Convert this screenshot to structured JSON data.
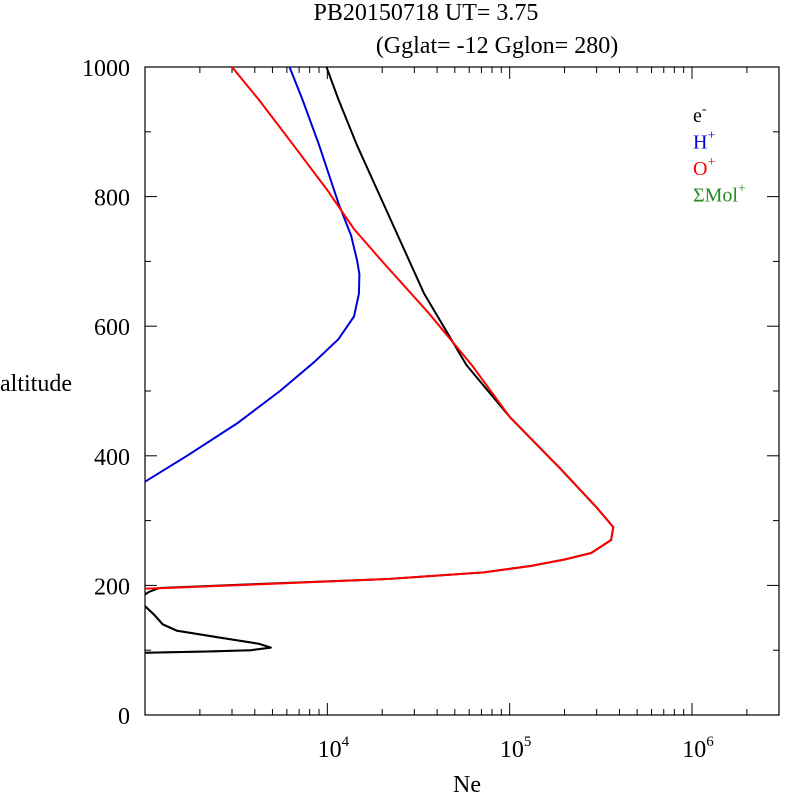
{
  "chart_data": {
    "type": "line",
    "title": "PB20150718   UT=  3.75",
    "subtitle": "(Gglat= -12   Gglon=  280)",
    "xlabel": "Ne",
    "ylabel": "altitude",
    "x_scale": "log",
    "xlim": [
      1000,
      3000000
    ],
    "ylim": [
      0,
      1000
    ],
    "grid": false,
    "legend_position": "top-right",
    "y_ticks": [
      0,
      200,
      400,
      600,
      800,
      1000
    ],
    "y_tick_labels": [
      "0",
      "200",
      "400",
      "600",
      "800",
      "1000"
    ],
    "x_ticks": [
      {
        "value": 10000,
        "base": "10",
        "exp": "4"
      },
      {
        "value": 100000,
        "base": "10",
        "exp": "5"
      },
      {
        "value": 1000000,
        "base": "10",
        "exp": "6"
      }
    ],
    "series": [
      {
        "name": "e",
        "sup": "-",
        "color": "#000000",
        "points": [
          [
            9900,
            1000
          ],
          [
            11500,
            950
          ],
          [
            14500,
            880
          ],
          [
            21000,
            780
          ],
          [
            34000,
            650
          ],
          [
            58000,
            540
          ],
          [
            100000,
            460
          ],
          [
            190000,
            380
          ],
          [
            300000,
            320
          ],
          [
            370000,
            290
          ],
          [
            360000,
            270
          ],
          [
            280000,
            250
          ],
          [
            200000,
            240
          ],
          [
            130000,
            230
          ],
          [
            72000,
            220
          ],
          [
            22000,
            210
          ],
          [
            4000,
            202
          ],
          [
            1200,
            196
          ],
          [
            1050,
            190
          ],
          [
            1000,
            186
          ]
        ]
      },
      {
        "name": "H",
        "sup": "+",
        "color": "#0000dd",
        "points": [
          [
            6200,
            1000
          ],
          [
            7300,
            950
          ],
          [
            9000,
            880
          ],
          [
            11500,
            790
          ],
          [
            13500,
            740
          ],
          [
            14600,
            700
          ],
          [
            15000,
            680
          ],
          [
            14900,
            650
          ],
          [
            14000,
            615
          ],
          [
            11500,
            580
          ],
          [
            8500,
            545
          ],
          [
            5500,
            500
          ],
          [
            3200,
            450
          ],
          [
            1700,
            400
          ],
          [
            1000,
            360
          ]
        ]
      },
      {
        "name": "O",
        "sup": "+",
        "color": "#ff0000",
        "points": [
          [
            3000,
            1000
          ],
          [
            4200,
            950
          ],
          [
            6500,
            880
          ],
          [
            10000,
            810
          ],
          [
            14000,
            750
          ],
          [
            20000,
            700
          ],
          [
            36000,
            620
          ],
          [
            62000,
            540
          ],
          [
            100000,
            460
          ],
          [
            190000,
            380
          ],
          [
            300000,
            320
          ],
          [
            370000,
            290
          ],
          [
            360000,
            270
          ],
          [
            280000,
            250
          ],
          [
            200000,
            240
          ],
          [
            130000,
            230
          ],
          [
            72000,
            220
          ],
          [
            22000,
            210
          ],
          [
            4500,
            202
          ],
          [
            1300,
            196
          ],
          [
            1000,
            195
          ]
        ]
      },
      {
        "name": "ΣMol",
        "sup": "+",
        "color": "#228b22",
        "points": [
          [
            1000,
            168
          ],
          [
            1120,
            155
          ],
          [
            1250,
            140
          ],
          [
            1500,
            130
          ],
          [
            2500,
            120
          ],
          [
            4200,
            110
          ],
          [
            4900,
            104
          ],
          [
            3800,
            100
          ],
          [
            2200,
            98
          ],
          [
            1000,
            96
          ]
        ]
      },
      {
        "name": "",
        "sup": "",
        "color": "#000000",
        "points": [
          [
            1000,
            168
          ],
          [
            1120,
            155
          ],
          [
            1250,
            140
          ],
          [
            1500,
            130
          ],
          [
            2500,
            120
          ],
          [
            4200,
            110
          ],
          [
            4900,
            104
          ],
          [
            3800,
            100
          ],
          [
            2200,
            98
          ],
          [
            1000,
            96
          ]
        ]
      }
    ]
  }
}
